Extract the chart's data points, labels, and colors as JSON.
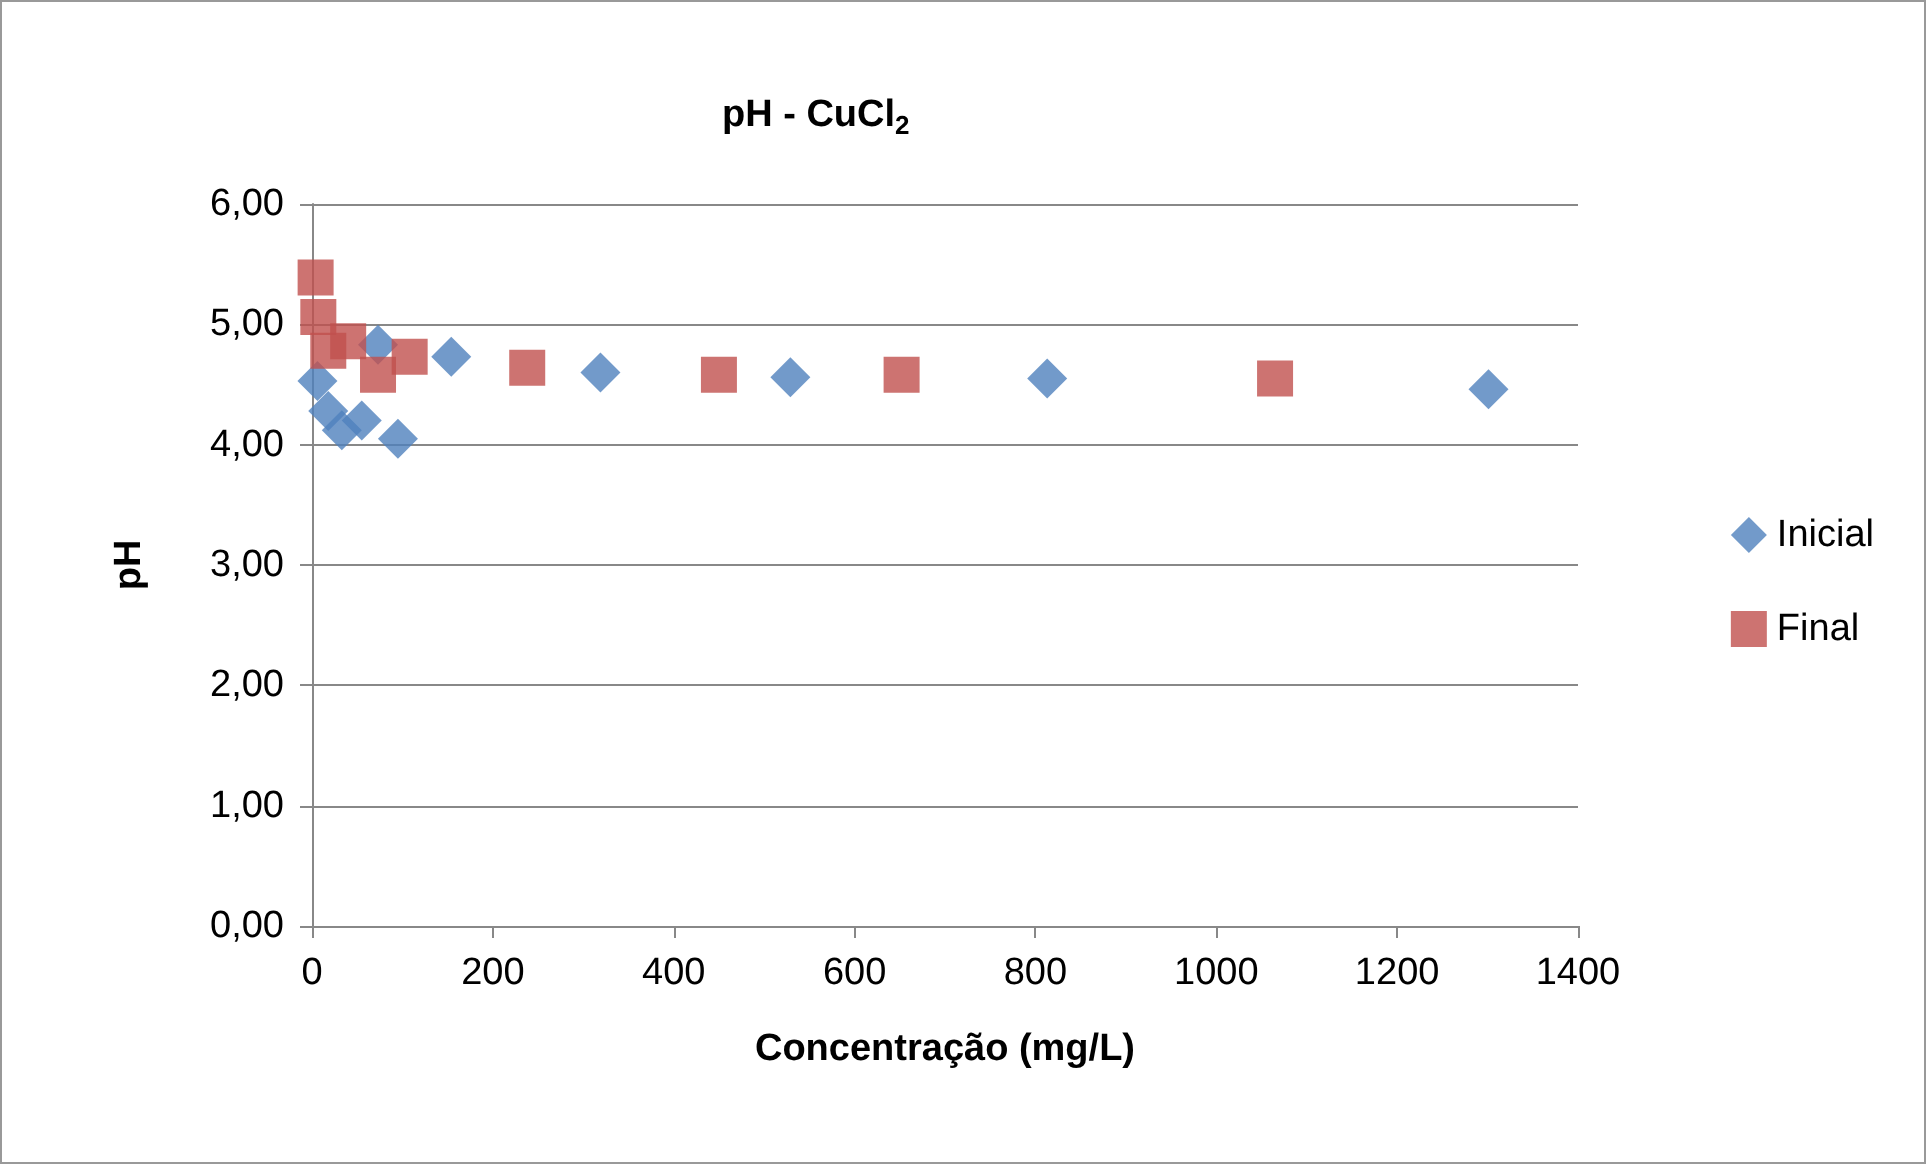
{
  "chart_data": {
    "type": "scatter",
    "title": "pH - CuCl$_{2}$",
    "xlabel": "Concentração (mg/L)",
    "ylabel": "pH",
    "series": [
      {
        "name": "Inicial",
        "color": "#4f81bd",
        "marker": "diamond",
        "x": [
          6,
          18,
          33,
          55,
          73,
          95,
          154,
          319,
          529,
          813,
          1301
        ],
        "values": [
          4.53,
          4.28,
          4.12,
          4.2,
          4.83,
          4.05,
          4.73,
          4.6,
          4.56,
          4.55,
          4.46
        ]
      },
      {
        "name": "Final",
        "color": "#c0504d",
        "marker": "square",
        "x": [
          4,
          7,
          18,
          35,
          40,
          73,
          108,
          238,
          450,
          652,
          1065
        ],
        "values": [
          5.39,
          5.06,
          4.78,
          null,
          4.86,
          4.58,
          4.73,
          4.64,
          4.58,
          4.58,
          4.55
        ]
      }
    ],
    "xlim": [
      0,
      1400
    ],
    "xticks": [
      0,
      200,
      400,
      600,
      800,
      1000,
      1200,
      1400
    ],
    "ylim": [
      0,
      6
    ],
    "yticks": [
      {
        "value": 0,
        "label": "0,00"
      },
      {
        "value": 1,
        "label": "1,00"
      },
      {
        "value": 2,
        "label": "2,00"
      },
      {
        "value": 3,
        "label": "3,00"
      },
      {
        "value": 4,
        "label": "4,00"
      },
      {
        "value": 5,
        "label": "5,00"
      },
      {
        "value": 6,
        "label": "6,00"
      }
    ],
    "grid": "y",
    "legend": "right"
  }
}
